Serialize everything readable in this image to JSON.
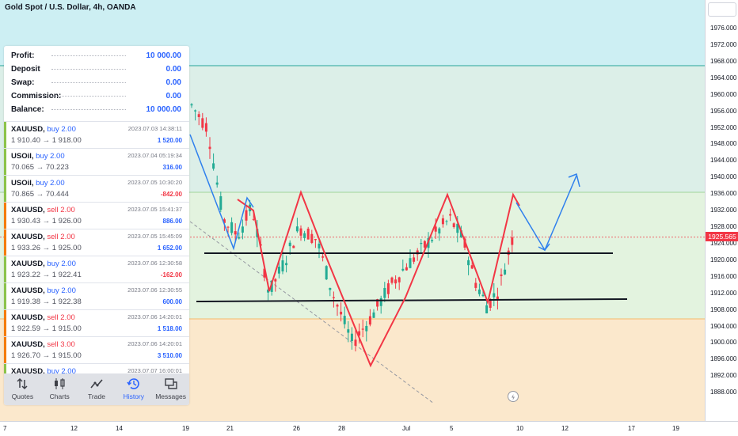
{
  "title": "Gold Spot / U.S. Dollar, 4h, OANDA",
  "price_axis": {
    "ticks": [
      "1976.000",
      "1972.000",
      "1968.000",
      "1964.000",
      "1960.000",
      "1956.000",
      "1952.000",
      "1948.000",
      "1944.000",
      "1940.000",
      "1936.000",
      "1932.000",
      "1928.000",
      "1924.000",
      "1920.000",
      "1916.000",
      "1912.000",
      "1908.000",
      "1904.000",
      "1900.000",
      "1896.000",
      "1892.000",
      "1888.000"
    ],
    "current_price": "1925.565"
  },
  "time_axis": {
    "ticks": [
      "7",
      "12",
      "14",
      "19",
      "21",
      "26",
      "28",
      "Jul",
      "5",
      "10",
      "12",
      "17",
      "19"
    ]
  },
  "summary": [
    {
      "label": "Profit:",
      "value": "10 000.00"
    },
    {
      "label": "Deposit",
      "value": "0.00"
    },
    {
      "label": "Swap:",
      "value": "0.00"
    },
    {
      "label": "Commission:",
      "value": "0.00"
    },
    {
      "label": "Balance:",
      "value": "10 000.00"
    }
  ],
  "trades": [
    {
      "symbol": "XAUUSD,",
      "side": "buy 2.00",
      "range": "1 910.40 → 1 918.00",
      "date": "2023.07.03 14:38:11",
      "pnl": "1 520.00",
      "positive": true
    },
    {
      "symbol": "USOil,",
      "side": "buy 2.00",
      "range": "70.065 → 70.223",
      "date": "2023.07.04 05:19:34",
      "pnl": "316.00",
      "positive": true
    },
    {
      "symbol": "USOil,",
      "side": "buy 2.00",
      "range": "70.865 → 70.444",
      "date": "2023.07.05 10:30:20",
      "pnl": "-842.00",
      "positive": false
    },
    {
      "symbol": "XAUUSD,",
      "side": "sell 2.00",
      "range": "1 930.43 → 1 926.00",
      "date": "2023.07.05 15:41:37",
      "pnl": "886.00",
      "positive": true
    },
    {
      "symbol": "XAUUSD,",
      "side": "sell 2.00",
      "range": "1 933.26 → 1 925.00",
      "date": "2023.07.05 15:45:09",
      "pnl": "1 652.00",
      "positive": true
    },
    {
      "symbol": "XAUUSD,",
      "side": "buy 2.00",
      "range": "1 923.22 → 1 922.41",
      "date": "2023.07.06 12:30:58",
      "pnl": "-162.00",
      "positive": false
    },
    {
      "symbol": "XAUUSD,",
      "side": "buy 2.00",
      "range": "1 919.38 → 1 922.38",
      "date": "2023.07.06 12:30:55",
      "pnl": "600.00",
      "positive": true
    },
    {
      "symbol": "XAUUSD,",
      "side": "sell 2.00",
      "range": "1 922.59 → 1 915.00",
      "date": "2023.07.06 14:20:01",
      "pnl": "1 518.00",
      "positive": true
    },
    {
      "symbol": "XAUUSD,",
      "side": "sell 3.00",
      "range": "1 926.70 → 1 915.00",
      "date": "2023.07.06 14:20:01",
      "pnl": "3 510.00",
      "positive": true
    },
    {
      "symbol": "XAUUSD,",
      "side": "buy 2.00",
      "range": "",
      "date": "2023.07.07 16:00:01",
      "pnl": "",
      "positive": true
    }
  ],
  "tabs": [
    {
      "label": "Quotes",
      "icon": "quotes-icon"
    },
    {
      "label": "Charts",
      "icon": "charts-icon"
    },
    {
      "label": "Trade",
      "icon": "trade-icon"
    },
    {
      "label": "History",
      "icon": "history-icon",
      "active": true
    },
    {
      "label": "Messages",
      "icon": "messages-icon"
    }
  ],
  "colors": {
    "accent": "#2962ff",
    "profit": "#2962ff",
    "loss": "#f23645",
    "buy_bar": "#8bc34a",
    "sell_bar": "#f57c00",
    "candle_up": "#22ab94",
    "candle_down": "#f23645",
    "pattern_line": "#f23645",
    "projection_line": "#2f80ed"
  }
}
